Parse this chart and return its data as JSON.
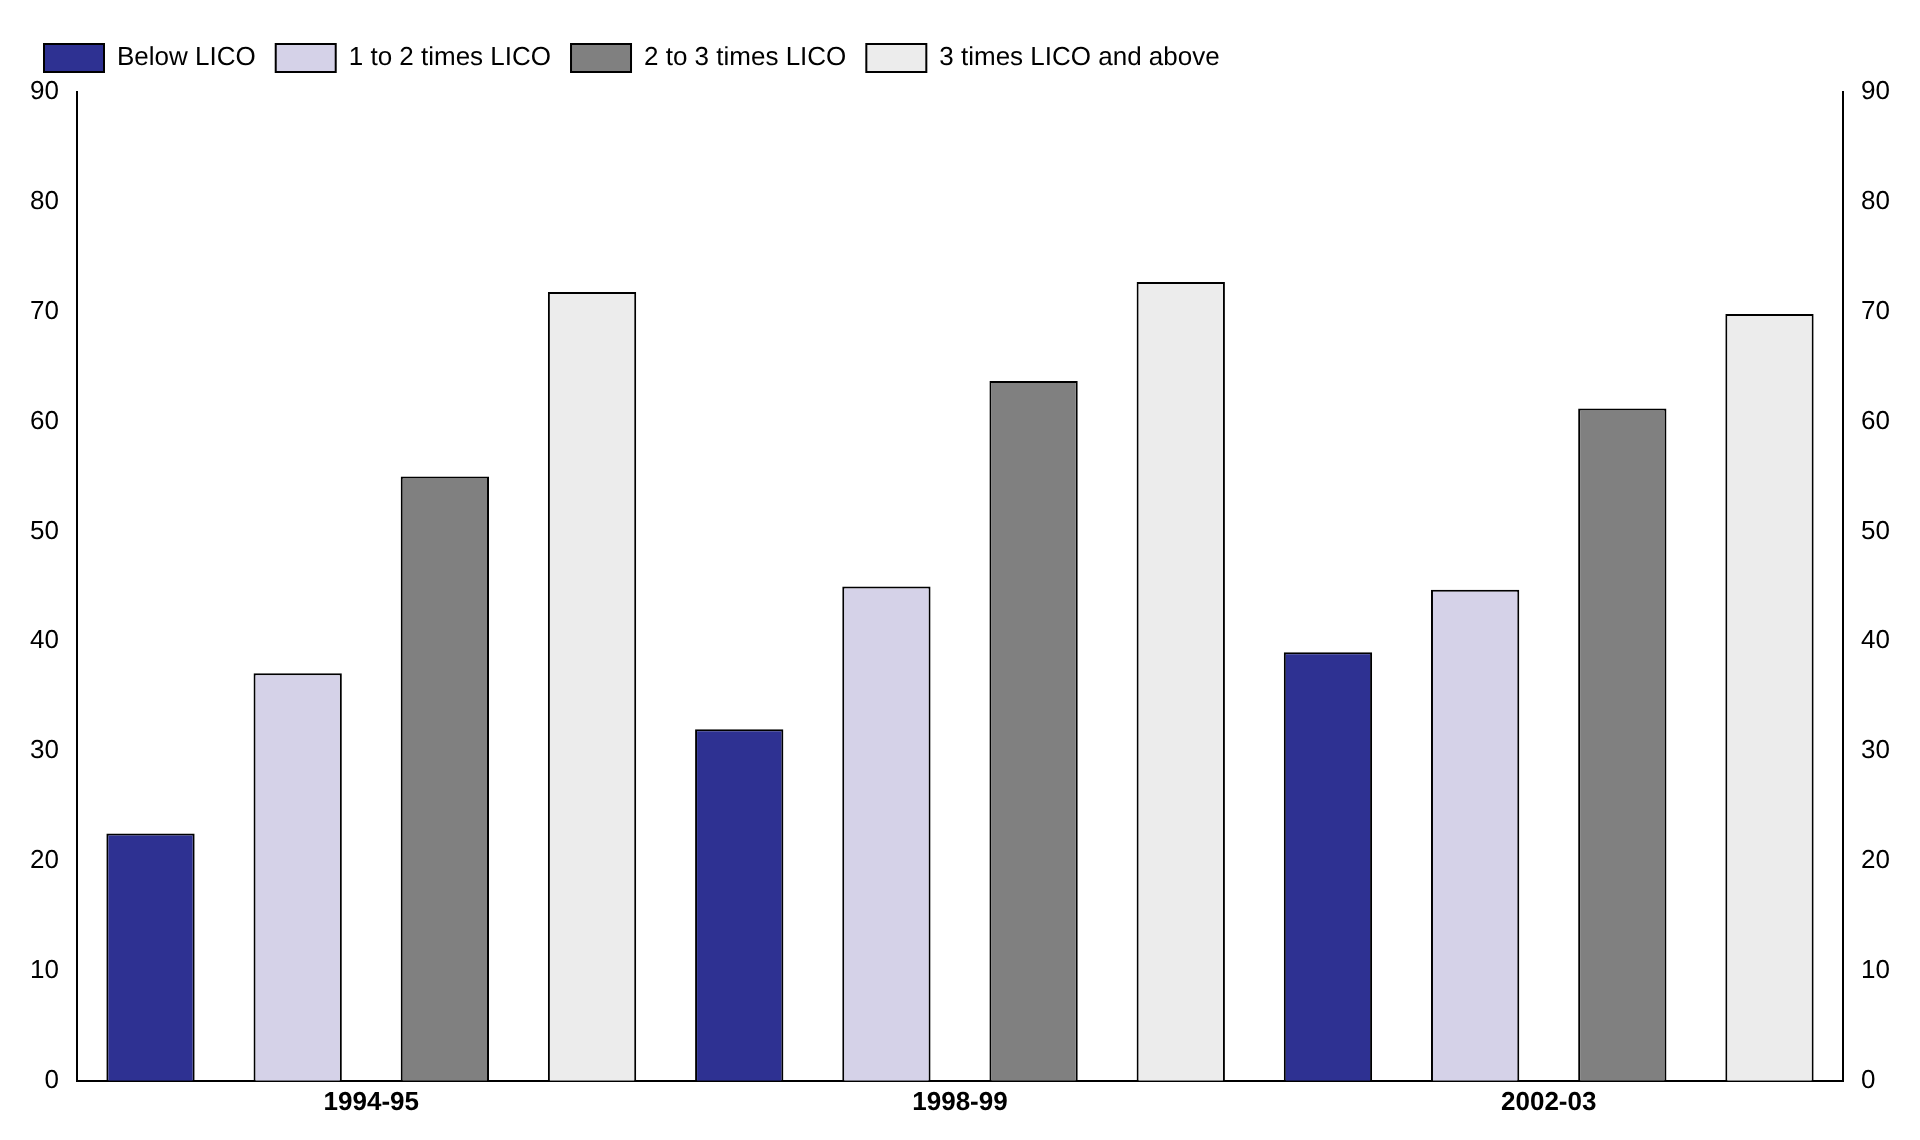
{
  "chart_data": {
    "type": "bar",
    "categories": [
      "1994-95",
      "1998-99",
      "2002-03"
    ],
    "series": [
      {
        "name": "Below LICO",
        "color": "#2e3192",
        "values": [
          22.5,
          32.0,
          39.0
        ]
      },
      {
        "name": "1 to 2 times LICO",
        "color": "#d5d2e8",
        "values": [
          37.1,
          45.0,
          44.7
        ]
      },
      {
        "name": "2 to 3 times LICO",
        "color": "#808080",
        "values": [
          55.0,
          63.7,
          61.2
        ]
      },
      {
        "name": "3 times LICO and above",
        "color": "#ececec",
        "values": [
          71.8,
          72.7,
          69.8
        ]
      }
    ],
    "ylim": [
      0,
      90
    ],
    "yticks": [
      0,
      10,
      20,
      30,
      40,
      50,
      60,
      70,
      80,
      90
    ],
    "y2lim": [
      0,
      90
    ],
    "y2ticks": [
      0,
      10,
      20,
      30,
      40,
      50,
      60,
      70,
      80,
      90
    ],
    "grid": false,
    "legend": "top left"
  }
}
